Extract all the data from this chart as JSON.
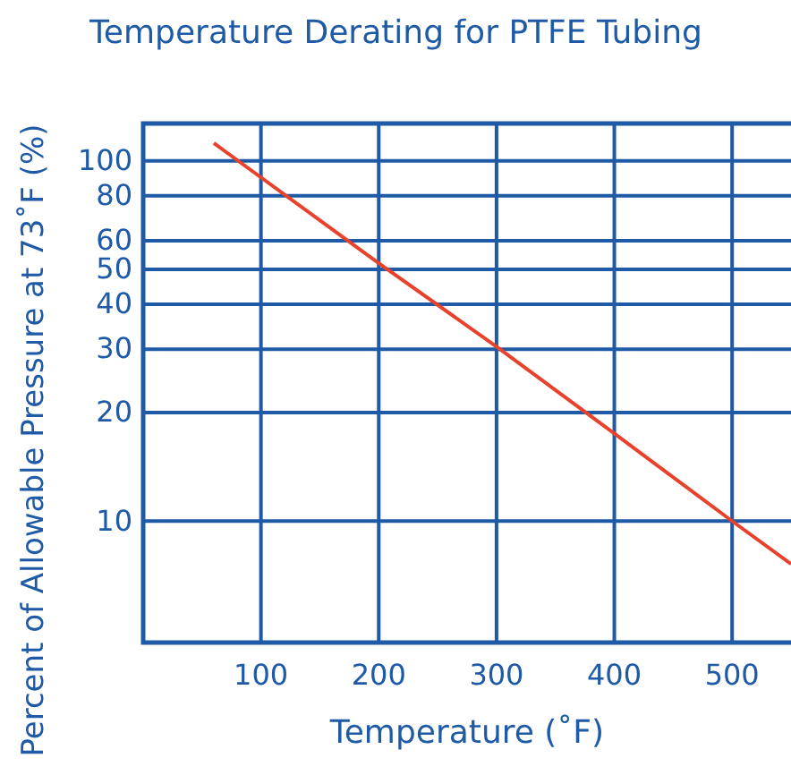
{
  "chart_data": {
    "type": "line",
    "title": "Temperature Derating for PTFE Tubing",
    "xlabel": "Temperature (˚F)",
    "ylabel": "Percent of Allowable Pressure at 73˚F (%)",
    "x": [
      60,
      200,
      300,
      400,
      500,
      550
    ],
    "series": [
      {
        "color": "#e8412c",
        "values": [
          112,
          52,
          30.5,
          17.5,
          10,
          7.6
        ]
      }
    ],
    "xlim": [
      0,
      550
    ],
    "xticks": [
      100,
      200,
      300,
      400,
      500
    ],
    "ylim": [
      4.6,
      127
    ],
    "yticks": [
      10,
      20,
      30,
      40,
      50,
      60,
      80,
      100
    ],
    "log": "y",
    "grid": true,
    "marker": "none",
    "line_style": "solid"
  }
}
